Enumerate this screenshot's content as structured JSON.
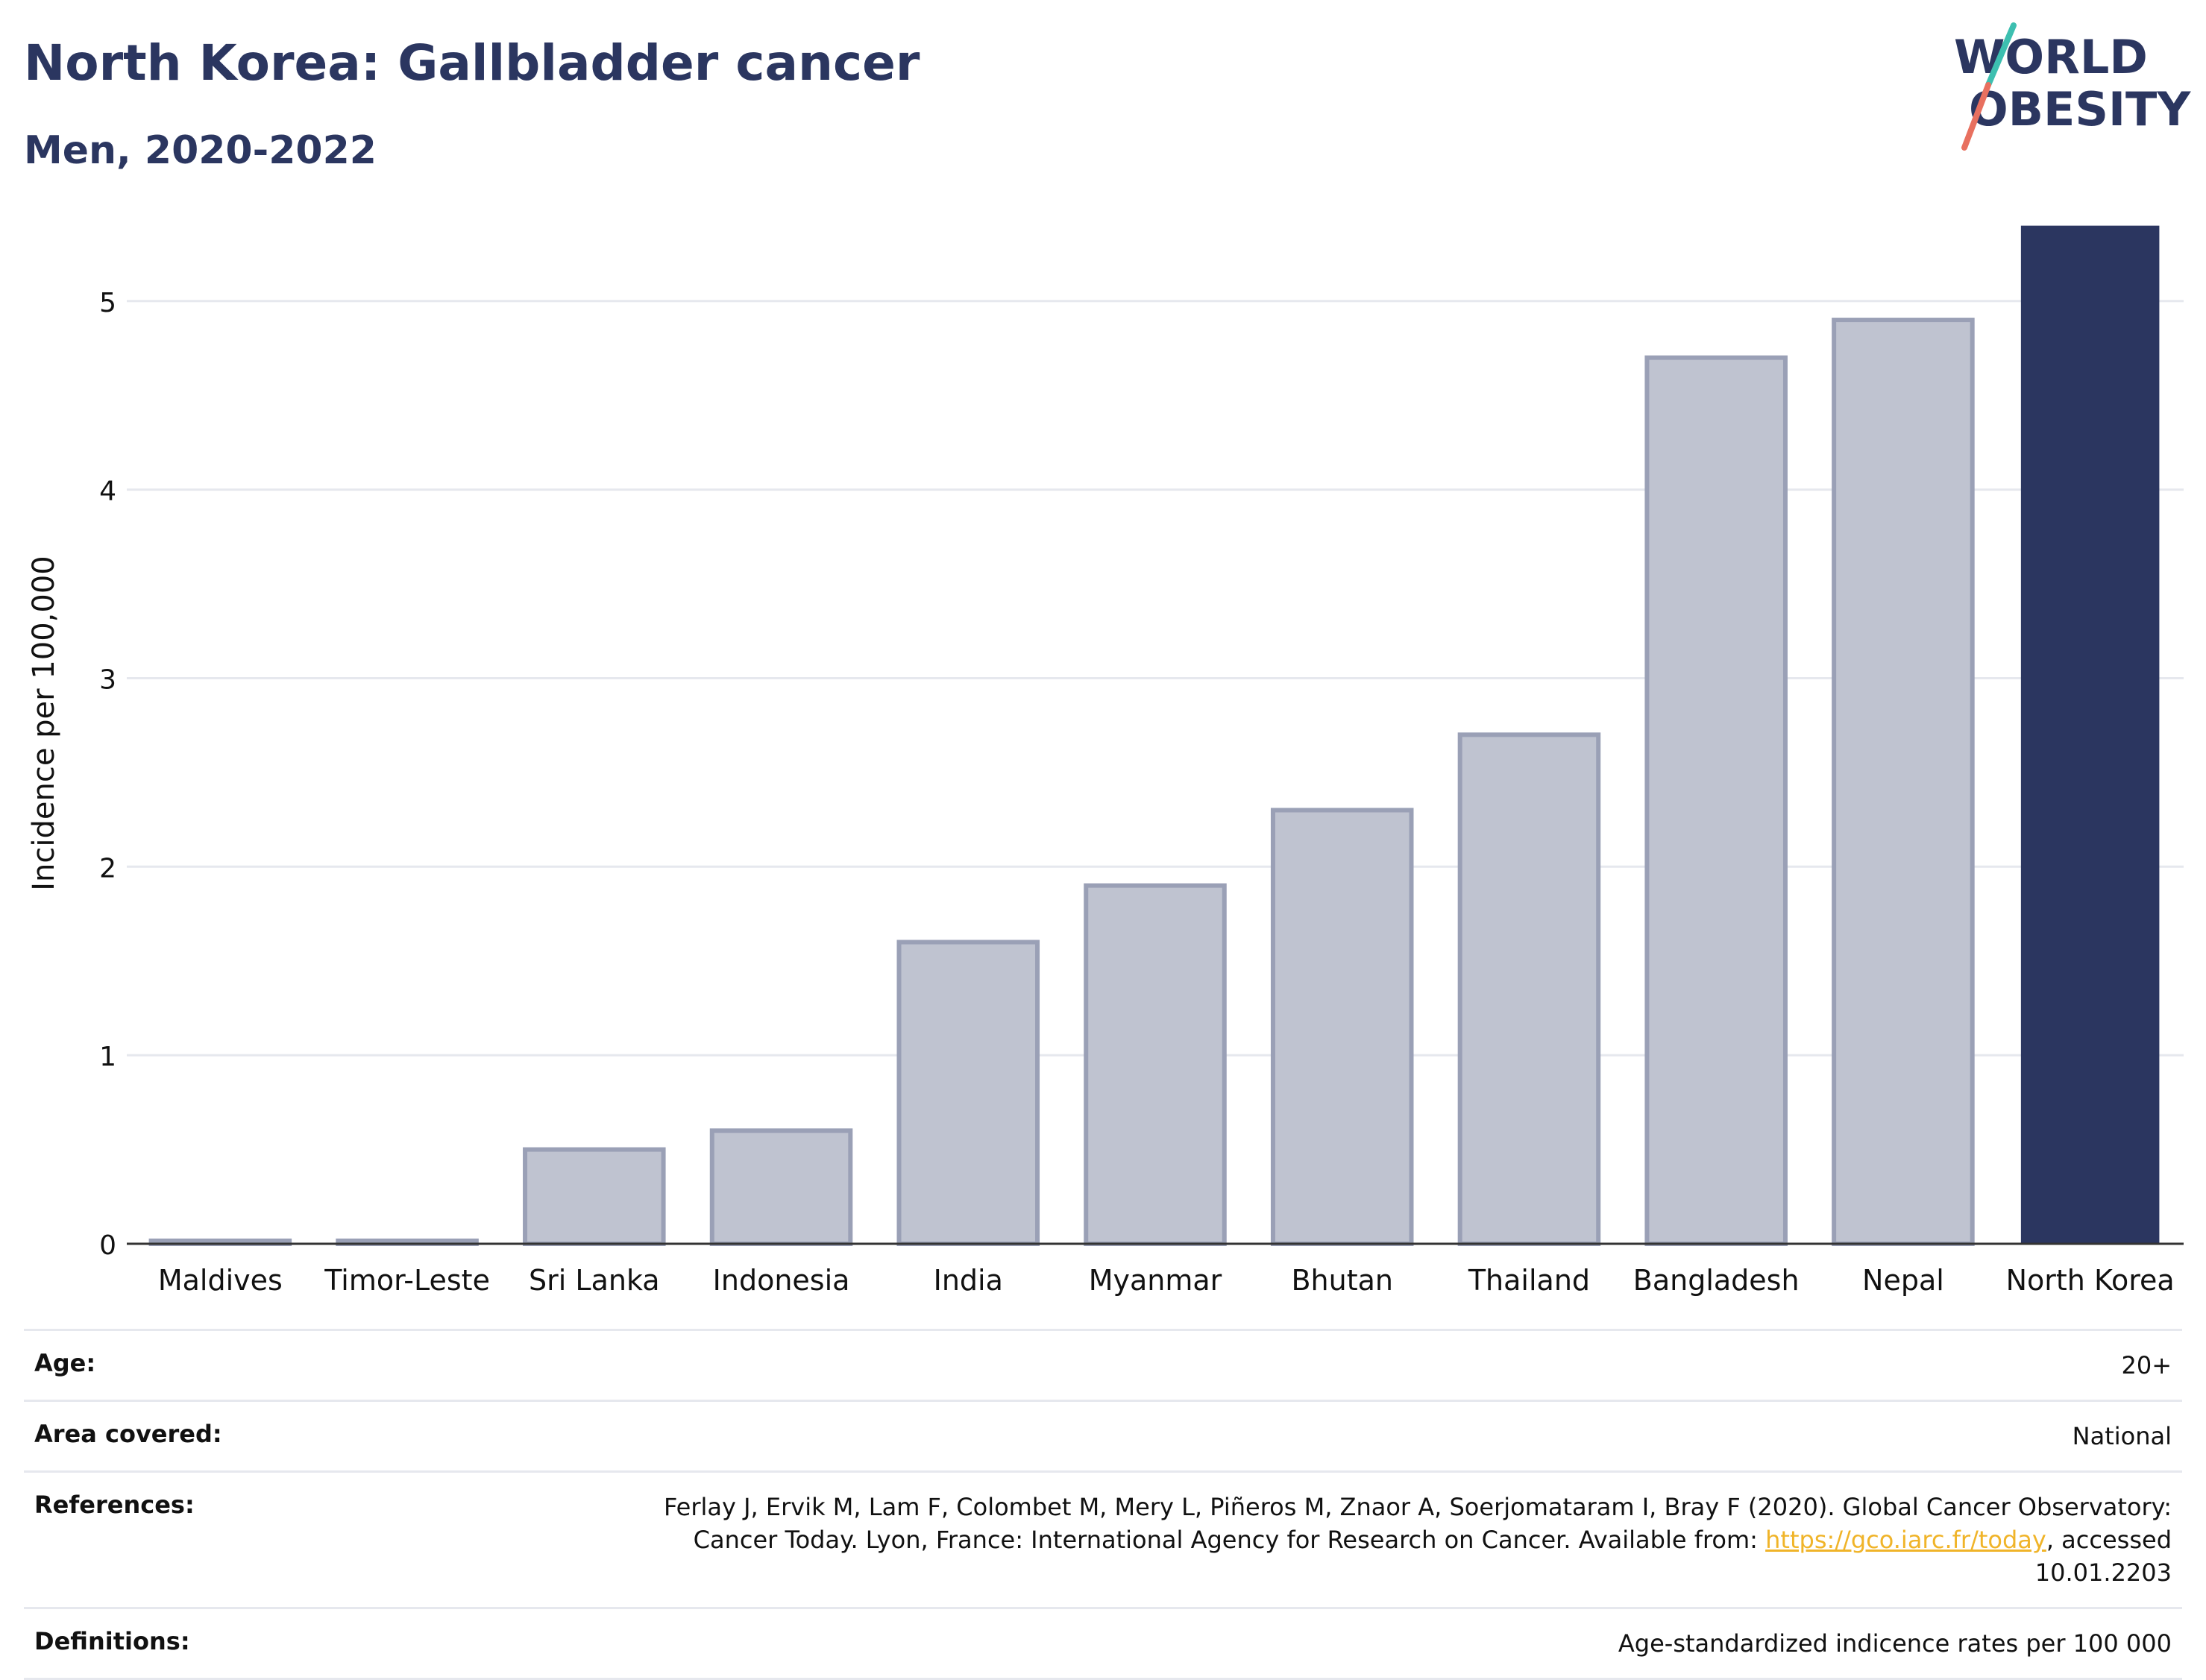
{
  "header": {
    "title": "North Korea: Gallbladder cancer",
    "subtitle": "Men, 2020-2022"
  },
  "logo": {
    "line1": "WORLD",
    "line2": "OBESITY",
    "colors": {
      "text": "#2b3660",
      "accent_teal": "#3dbfb0",
      "accent_coral": "#e8705f"
    }
  },
  "chart_data": {
    "type": "bar",
    "title": "",
    "xlabel": "",
    "ylabel": "Incidence per 100,000",
    "ylim": [
      0,
      5.45
    ],
    "yticks": [
      0,
      1,
      2,
      3,
      4,
      5
    ],
    "grid": true,
    "categories": [
      "Maldives",
      "Timor-Leste",
      "Sri Lanka",
      "Indonesia",
      "India",
      "Myanmar",
      "Bhutan",
      "Thailand",
      "Bangladesh",
      "Nepal",
      "North Korea"
    ],
    "values": [
      0.0,
      0.0,
      0.5,
      0.6,
      1.6,
      1.9,
      2.3,
      2.7,
      4.7,
      4.9,
      5.4
    ],
    "highlight": "North Korea",
    "colors": {
      "highlight": "#2b3660",
      "other_fill": "#bfc3d0",
      "other_stroke": "#9aa0b6",
      "grid": "#e6e8ee",
      "axis": "#333333"
    }
  },
  "metadata": [
    {
      "label": "Age:",
      "value": "20+"
    },
    {
      "label": "Area covered:",
      "value": "National"
    },
    {
      "label": "References:",
      "value_before": "Ferlay J, Ervik M, Lam F, Colombet M, Mery L, Piñeros M, Znaor A, Soerjomataram I, Bray F (2020). Global Cancer Observatory: Cancer Today. Lyon, France: International Agency for Research on Cancer. Available from: ",
      "link": "https://gco.iarc.fr/today",
      "value_after": ", accessed 10.01.2203"
    },
    {
      "label": "Definitions:",
      "value": "Age-standardized indicence rates per 100 000"
    }
  ]
}
